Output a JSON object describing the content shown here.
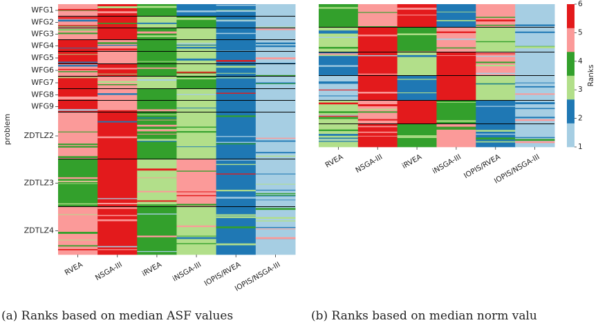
{
  "colors": {
    "rank_1": "#a6cee3",
    "rank_2": "#1f78b4",
    "rank_3": "#b2df8a",
    "rank_4": "#33a02c",
    "rank_5": "#fb9a99",
    "rank_6": "#e31a1c",
    "separator": "#000000"
  },
  "captions": {
    "a": "(a) Ranks based on median ASF values",
    "b": "(b) Ranks based on median norm valu"
  },
  "chart_data": [
    {
      "type": "heatmap",
      "title": "",
      "xlabel": "",
      "ylabel": "problem",
      "x_categories": [
        "RVEA",
        "NSGA-III",
        "iRVEA",
        "iNSGA-III",
        "IOPIS/RVEA",
        "IOPIS/NSGA-III"
      ],
      "y_tick_labels": [
        "WFG1",
        "WFG2",
        "WFG3",
        "WFG4",
        "WFG5",
        "WFG6",
        "WFG7",
        "WFG8",
        "WFG9",
        "ZDTLZ2",
        "ZDTLZ3",
        "ZDTLZ4"
      ],
      "groups": [
        {
          "name": "WFG1",
          "dominant": [
            5,
            6,
            4,
            2,
            2,
            1
          ]
        },
        {
          "name": "WFG2",
          "dominant": [
            5,
            6,
            3,
            4,
            2,
            1
          ]
        },
        {
          "name": "WFG3",
          "dominant": [
            5,
            6,
            4,
            3,
            2,
            1
          ]
        },
        {
          "name": "WFG4",
          "dominant": [
            6,
            5,
            4,
            3,
            2,
            1
          ]
        },
        {
          "name": "WFG5",
          "dominant": [
            6,
            5,
            4,
            3,
            2,
            1
          ]
        },
        {
          "name": "WFG6",
          "dominant": [
            5,
            6,
            4,
            3,
            2,
            1
          ]
        },
        {
          "name": "WFG7",
          "dominant": [
            6,
            5,
            3,
            4,
            2,
            1
          ]
        },
        {
          "name": "WFG8",
          "dominant": [
            6,
            5,
            4,
            3,
            2,
            1
          ]
        },
        {
          "name": "WFG9",
          "dominant": [
            6,
            5,
            4,
            3,
            2,
            1
          ]
        },
        {
          "name": "ZDTLZ2",
          "dominant": [
            5,
            6,
            4,
            3,
            2,
            1
          ]
        },
        {
          "name": "ZDTLZ3",
          "dominant": [
            4,
            6,
            3,
            5,
            2,
            1
          ]
        },
        {
          "name": "ZDTLZ4",
          "dominant": [
            5,
            6,
            4,
            3,
            2,
            1
          ]
        }
      ],
      "value_range": [
        1,
        6
      ]
    },
    {
      "type": "heatmap",
      "title": "",
      "xlabel": "",
      "ylabel": "",
      "x_categories": [
        "RVEA",
        "NSGA-III",
        "iRVEA",
        "iNSGA-III",
        "IOPIS/RVEA",
        "IOPIS/NSGA-III"
      ],
      "y_tick_labels": [],
      "groups": [
        {
          "name": "g1",
          "dominant": [
            4,
            5,
            6,
            2,
            5,
            1
          ]
        },
        {
          "name": "g2",
          "dominant": [
            3,
            6,
            4,
            5,
            3,
            1
          ]
        },
        {
          "name": "g3",
          "dominant": [
            2,
            6,
            3,
            6,
            5,
            1
          ]
        },
        {
          "name": "g4",
          "dominant": [
            1,
            6,
            2,
            6,
            3,
            1
          ]
        },
        {
          "name": "g5",
          "dominant": [
            3,
            5,
            6,
            4,
            2,
            1
          ]
        },
        {
          "name": "g6",
          "dominant": [
            3,
            6,
            4,
            5,
            2,
            1
          ]
        }
      ],
      "colorbar": {
        "label": "Ranks",
        "ticks": [
          "1",
          "2",
          "3",
          "4",
          "5",
          "6"
        ],
        "range": [
          1,
          6
        ]
      },
      "value_range": [
        1,
        6
      ]
    }
  ]
}
